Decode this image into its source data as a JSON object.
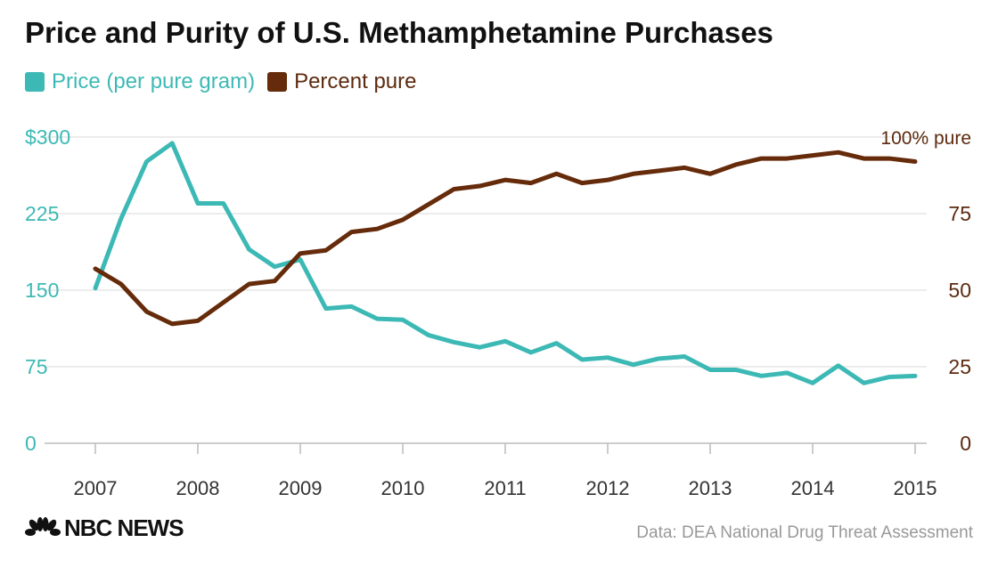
{
  "chart_data": {
    "type": "line",
    "title": "Price and Purity of U.S. Methamphetamine Purchases",
    "x_tick_labels": [
      "2007",
      "2008",
      "2009",
      "2010",
      "2011",
      "2012",
      "2013",
      "2014",
      "2015"
    ],
    "x_range": [
      2007,
      2015
    ],
    "points_per_year": 4,
    "left_axis": {
      "ticks": [
        "$300",
        "225",
        "150",
        "75",
        "0"
      ],
      "range": [
        0,
        300
      ],
      "color": "#3db9b5"
    },
    "right_axis": {
      "ticks": [
        "100% pure",
        "75",
        "50",
        "25",
        "0"
      ],
      "range": [
        0,
        100
      ],
      "color": "#5c2a0e"
    },
    "grid": true,
    "legend_placement": "top-left",
    "series": [
      {
        "name": "Price (per pure gram)",
        "axis": "left",
        "color": "#3db9b5",
        "values": [
          152,
          220,
          276,
          294,
          235,
          235,
          190,
          173,
          180,
          132,
          134,
          122,
          121,
          106,
          99,
          94,
          100,
          89,
          98,
          82,
          84,
          77,
          83,
          85,
          72,
          72,
          66,
          69,
          59,
          76,
          59,
          65,
          66
        ]
      },
      {
        "name": "Percent pure",
        "axis": "right",
        "color": "#652b0a",
        "values": [
          57,
          52,
          43,
          39,
          40,
          46,
          52,
          53,
          62,
          63,
          69,
          70,
          73,
          78,
          83,
          84,
          86,
          85,
          88,
          85,
          86,
          88,
          89,
          90,
          88,
          91,
          93,
          93,
          94,
          95,
          93,
          93,
          92
        ]
      }
    ]
  },
  "footer": {
    "source": "Data: DEA National Drug Threat Assessment",
    "logo_text": "NBC NEWS"
  }
}
